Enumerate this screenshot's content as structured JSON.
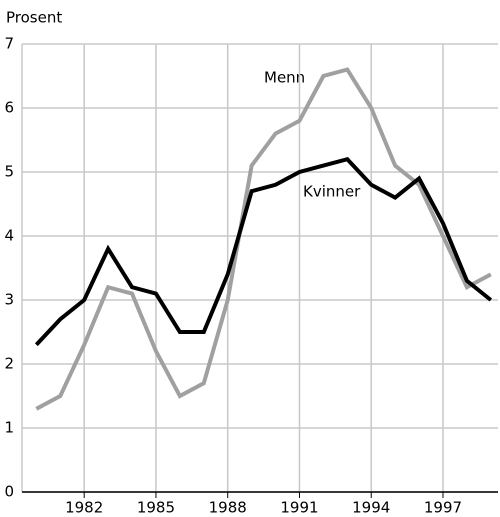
{
  "chart_data": {
    "type": "line",
    "ylabel": "Prosent",
    "x": [
      1980,
      1981,
      1982,
      1983,
      1984,
      1985,
      1986,
      1987,
      1988,
      1989,
      1990,
      1991,
      1992,
      1993,
      1994,
      1995,
      1996,
      1997,
      1998,
      1999
    ],
    "series": [
      {
        "name": "Menn",
        "color": "#a0a0a0",
        "values": [
          1.3,
          1.5,
          2.3,
          3.2,
          3.1,
          2.2,
          1.5,
          1.7,
          3.0,
          5.1,
          5.6,
          5.8,
          6.5,
          6.6,
          6.0,
          5.1,
          4.8,
          4.0,
          3.2,
          3.4
        ]
      },
      {
        "name": "Kvinner",
        "color": "#000000",
        "values": [
          2.3,
          2.7,
          3.0,
          3.8,
          3.2,
          3.1,
          2.5,
          2.5,
          3.4,
          4.7,
          4.8,
          5.0,
          5.1,
          5.2,
          4.8,
          4.6,
          4.9,
          4.2,
          3.3,
          3.0
        ]
      }
    ],
    "xlim": [
      1979.4,
      1999.3
    ],
    "xticks": [
      1982,
      1985,
      1988,
      1991,
      1994,
      1997
    ],
    "ylim": [
      0,
      7
    ],
    "yticks": [
      0,
      1,
      2,
      3,
      4,
      5,
      6,
      7
    ],
    "grid": true
  }
}
